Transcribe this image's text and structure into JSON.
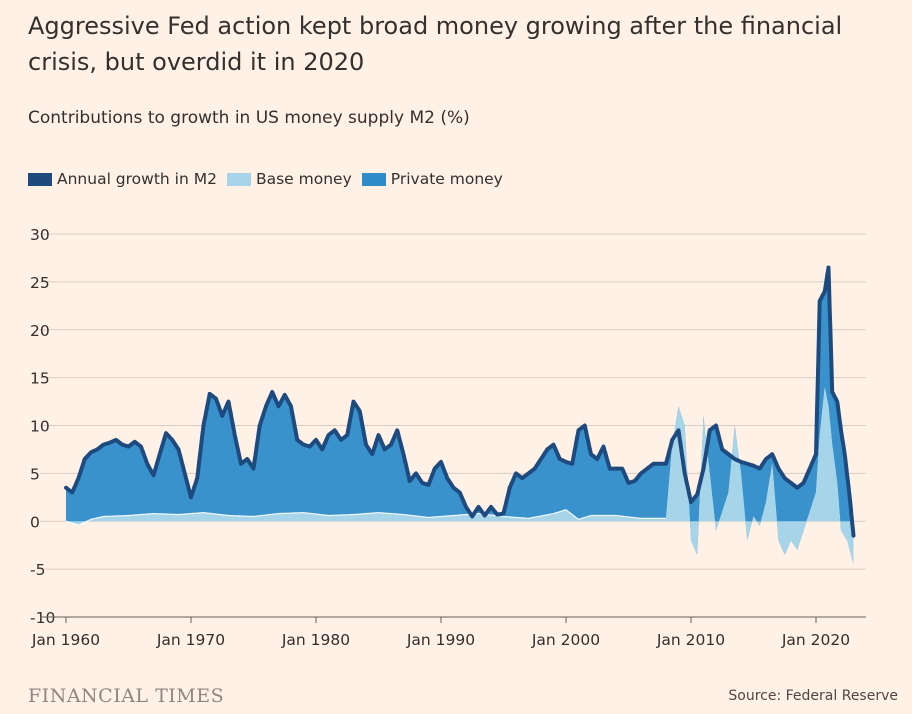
{
  "header": {
    "title": "Aggressive Fed action kept broad money growing after the financial crisis, but overdid it in 2020",
    "subtitle": "Contributions to growth in US money supply M2 (%)"
  },
  "legend": [
    {
      "label": "Annual growth in M2",
      "color": "#1e4b7f"
    },
    {
      "label": "Base money",
      "color": "#a6d4e8"
    },
    {
      "label": "Private money",
      "color": "#2f8ccb"
    }
  ],
  "footer": {
    "logo": "FINANCIAL TIMES",
    "source": "Source: Federal Reserve"
  },
  "chart_data": {
    "type": "area",
    "x_axis": {
      "min": 1960,
      "max": 2024,
      "ticks": [
        1960,
        1970,
        1980,
        1990,
        2000,
        2010,
        2020
      ],
      "tick_labels": [
        "Jan 1960",
        "Jan 1970",
        "Jan 1980",
        "Jan 1990",
        "Jan 2000",
        "Jan 2010",
        "Jan 2020"
      ]
    },
    "y_axis": {
      "min": -10,
      "max": 30,
      "ticks": [
        -10,
        -5,
        0,
        5,
        10,
        15,
        20,
        25,
        30
      ],
      "tick_labels": [
        "-10",
        "-5",
        "0",
        "5",
        "10",
        "15",
        "20",
        "25",
        "30"
      ]
    },
    "grid": true,
    "series": [
      {
        "name": "Annual growth in M2",
        "kind": "line",
        "color": "#1e4b7f",
        "points": [
          [
            1960.0,
            3.5
          ],
          [
            1960.5,
            3.0
          ],
          [
            1961.0,
            4.5
          ],
          [
            1961.5,
            6.5
          ],
          [
            1962.0,
            7.2
          ],
          [
            1962.5,
            7.5
          ],
          [
            1963.0,
            8.0
          ],
          [
            1963.5,
            8.2
          ],
          [
            1964.0,
            8.5
          ],
          [
            1964.5,
            8.0
          ],
          [
            1965.0,
            7.8
          ],
          [
            1965.5,
            8.3
          ],
          [
            1966.0,
            7.8
          ],
          [
            1966.5,
            6.0
          ],
          [
            1967.0,
            4.8
          ],
          [
            1967.5,
            7.0
          ],
          [
            1968.0,
            9.2
          ],
          [
            1968.5,
            8.5
          ],
          [
            1969.0,
            7.5
          ],
          [
            1969.5,
            5.0
          ],
          [
            1970.0,
            2.5
          ],
          [
            1970.5,
            4.5
          ],
          [
            1971.0,
            10.0
          ],
          [
            1971.5,
            13.3
          ],
          [
            1972.0,
            12.8
          ],
          [
            1972.5,
            11.0
          ],
          [
            1973.0,
            12.5
          ],
          [
            1973.5,
            9.0
          ],
          [
            1974.0,
            6.0
          ],
          [
            1974.5,
            6.5
          ],
          [
            1975.0,
            5.5
          ],
          [
            1975.5,
            10.0
          ],
          [
            1976.0,
            12.0
          ],
          [
            1976.5,
            13.5
          ],
          [
            1977.0,
            12.0
          ],
          [
            1977.5,
            13.2
          ],
          [
            1978.0,
            12.0
          ],
          [
            1978.5,
            8.5
          ],
          [
            1979.0,
            8.0
          ],
          [
            1979.5,
            7.8
          ],
          [
            1980.0,
            8.5
          ],
          [
            1980.5,
            7.5
          ],
          [
            1981.0,
            9.0
          ],
          [
            1981.5,
            9.5
          ],
          [
            1982.0,
            8.5
          ],
          [
            1982.5,
            9.0
          ],
          [
            1983.0,
            12.5
          ],
          [
            1983.5,
            11.5
          ],
          [
            1984.0,
            8.0
          ],
          [
            1984.5,
            7.0
          ],
          [
            1985.0,
            9.0
          ],
          [
            1985.5,
            7.5
          ],
          [
            1986.0,
            8.0
          ],
          [
            1986.5,
            9.5
          ],
          [
            1987.0,
            7.0
          ],
          [
            1987.5,
            4.2
          ],
          [
            1988.0,
            5.0
          ],
          [
            1988.5,
            4.0
          ],
          [
            1989.0,
            3.8
          ],
          [
            1989.5,
            5.5
          ],
          [
            1990.0,
            6.2
          ],
          [
            1990.5,
            4.5
          ],
          [
            1991.0,
            3.5
          ],
          [
            1991.5,
            3.0
          ],
          [
            1992.0,
            1.5
          ],
          [
            1992.5,
            0.5
          ],
          [
            1993.0,
            1.5
          ],
          [
            1993.5,
            0.6
          ],
          [
            1994.0,
            1.5
          ],
          [
            1994.5,
            0.7
          ],
          [
            1995.0,
            0.8
          ],
          [
            1995.5,
            3.5
          ],
          [
            1996.0,
            5.0
          ],
          [
            1996.5,
            4.5
          ],
          [
            1997.0,
            5.0
          ],
          [
            1997.5,
            5.5
          ],
          [
            1998.0,
            6.5
          ],
          [
            1998.5,
            7.5
          ],
          [
            1999.0,
            8.0
          ],
          [
            1999.5,
            6.5
          ],
          [
            2000.0,
            6.2
          ],
          [
            2000.5,
            6.0
          ],
          [
            2001.0,
            9.5
          ],
          [
            2001.5,
            10.0
          ],
          [
            2002.0,
            7.0
          ],
          [
            2002.5,
            6.5
          ],
          [
            2003.0,
            7.8
          ],
          [
            2003.5,
            5.5
          ],
          [
            2004.0,
            5.5
          ],
          [
            2004.5,
            5.5
          ],
          [
            2005.0,
            4.0
          ],
          [
            2005.5,
            4.2
          ],
          [
            2006.0,
            5.0
          ],
          [
            2006.5,
            5.5
          ],
          [
            2007.0,
            6.0
          ],
          [
            2007.5,
            6.0
          ],
          [
            2008.0,
            6.0
          ],
          [
            2008.5,
            8.5
          ],
          [
            2009.0,
            9.5
          ],
          [
            2009.5,
            5.0
          ],
          [
            2010.0,
            2.0
          ],
          [
            2010.5,
            2.8
          ],
          [
            2011.0,
            5.5
          ],
          [
            2011.5,
            9.5
          ],
          [
            2012.0,
            10.0
          ],
          [
            2012.5,
            7.5
          ],
          [
            2013.0,
            7.0
          ],
          [
            2013.5,
            6.5
          ],
          [
            2014.0,
            6.2
          ],
          [
            2014.5,
            6.0
          ],
          [
            2015.0,
            5.8
          ],
          [
            2015.5,
            5.5
          ],
          [
            2016.0,
            6.5
          ],
          [
            2016.5,
            7.0
          ],
          [
            2017.0,
            5.5
          ],
          [
            2017.5,
            4.5
          ],
          [
            2018.0,
            4.0
          ],
          [
            2018.5,
            3.5
          ],
          [
            2019.0,
            4.0
          ],
          [
            2019.5,
            5.5
          ],
          [
            2020.0,
            7.0
          ],
          [
            2020.3,
            23.0
          ],
          [
            2020.7,
            24.0
          ],
          [
            2021.0,
            26.5
          ],
          [
            2021.3,
            13.5
          ],
          [
            2021.7,
            12.5
          ],
          [
            2022.0,
            9.5
          ],
          [
            2022.3,
            7.0
          ],
          [
            2022.7,
            2.5
          ],
          [
            2023.0,
            -1.5
          ]
        ]
      },
      {
        "name": "Base money",
        "kind": "area",
        "color": "#a6d4e8",
        "points": [
          [
            1960.0,
            0.0
          ],
          [
            1961.0,
            -0.4
          ],
          [
            1962.0,
            0.2
          ],
          [
            1963.0,
            0.5
          ],
          [
            1965.0,
            0.6
          ],
          [
            1967.0,
            0.8
          ],
          [
            1969.0,
            0.7
          ],
          [
            1971.0,
            0.9
          ],
          [
            1973.0,
            0.6
          ],
          [
            1975.0,
            0.5
          ],
          [
            1977.0,
            0.8
          ],
          [
            1979.0,
            0.9
          ],
          [
            1981.0,
            0.6
          ],
          [
            1983.0,
            0.7
          ],
          [
            1985.0,
            0.9
          ],
          [
            1987.0,
            0.7
          ],
          [
            1989.0,
            0.4
          ],
          [
            1991.0,
            0.6
          ],
          [
            1993.0,
            0.8
          ],
          [
            1995.0,
            0.5
          ],
          [
            1997.0,
            0.3
          ],
          [
            1999.0,
            0.8
          ],
          [
            2000.0,
            1.2
          ],
          [
            2001.0,
            0.2
          ],
          [
            2002.0,
            0.6
          ],
          [
            2004.0,
            0.6
          ],
          [
            2006.0,
            0.3
          ],
          [
            2008.0,
            0.3
          ],
          [
            2008.5,
            8.0
          ],
          [
            2009.0,
            12.0
          ],
          [
            2009.5,
            10.0
          ],
          [
            2010.0,
            -2.0
          ],
          [
            2010.5,
            -3.5
          ],
          [
            2011.0,
            11.0
          ],
          [
            2011.5,
            5.0
          ],
          [
            2012.0,
            -1.0
          ],
          [
            2013.0,
            3.0
          ],
          [
            2013.5,
            10.0
          ],
          [
            2014.0,
            5.0
          ],
          [
            2014.5,
            -2.0
          ],
          [
            2015.0,
            0.5
          ],
          [
            2015.5,
            -0.5
          ],
          [
            2016.0,
            2.0
          ],
          [
            2016.5,
            6.0
          ],
          [
            2017.0,
            -2.0
          ],
          [
            2017.5,
            -3.5
          ],
          [
            2018.0,
            -2.0
          ],
          [
            2018.5,
            -3.0
          ],
          [
            2019.0,
            -1.0
          ],
          [
            2019.5,
            1.0
          ],
          [
            2020.0,
            3.0
          ],
          [
            2020.3,
            9.0
          ],
          [
            2020.7,
            14.0
          ],
          [
            2021.0,
            12.0
          ],
          [
            2021.3,
            8.0
          ],
          [
            2021.7,
            4.0
          ],
          [
            2022.0,
            -1.0
          ],
          [
            2022.5,
            -2.0
          ],
          [
            2023.0,
            -4.5
          ]
        ]
      },
      {
        "name": "Private money",
        "kind": "area",
        "color": "#2f8ccb"
      }
    ]
  }
}
